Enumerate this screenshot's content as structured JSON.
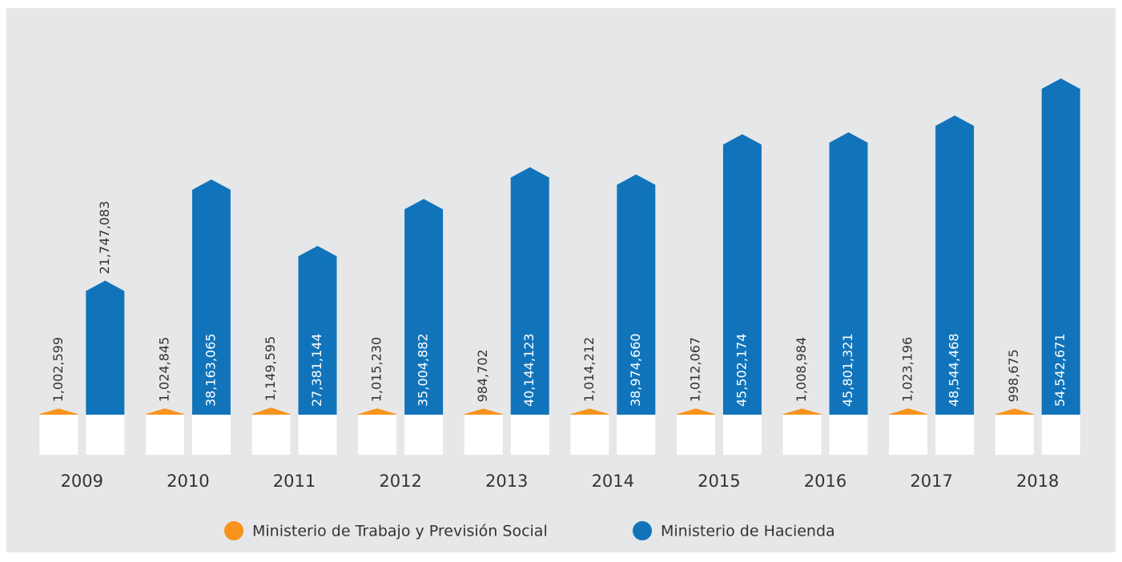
{
  "chart_data": {
    "type": "bar",
    "categories": [
      "2009",
      "2010",
      "2011",
      "2012",
      "2013",
      "2014",
      "2015",
      "2016",
      "2017",
      "2018"
    ],
    "series": [
      {
        "name": "Ministerio de Trabajo y Previsión Social",
        "color": "#f7941d",
        "values": [
          1002599,
          1024845,
          1149595,
          1015230,
          984702,
          1014212,
          1012067,
          1008984,
          1023196,
          998675
        ],
        "value_labels": [
          "1,002,599",
          "1,024,845",
          "1,149,595",
          "1,015,230",
          "984,702",
          "1,014,212",
          "1,012,067",
          "1,008,984",
          "1,023,196",
          "998,675"
        ]
      },
      {
        "name": "Ministerio de Hacienda",
        "color": "#1174bb",
        "values": [
          21747083,
          38163065,
          27381144,
          35004882,
          40144123,
          38974660,
          45502174,
          45801321,
          48544468,
          54542671
        ],
        "value_labels": [
          "21,747,083",
          "38,163,065",
          "27,381,144",
          "35,004,882",
          "40,144,123",
          "38,974,660",
          "45,502,174",
          "45,801,321",
          "48,544,468",
          "54,542,671"
        ]
      }
    ],
    "legend": "bottom"
  }
}
